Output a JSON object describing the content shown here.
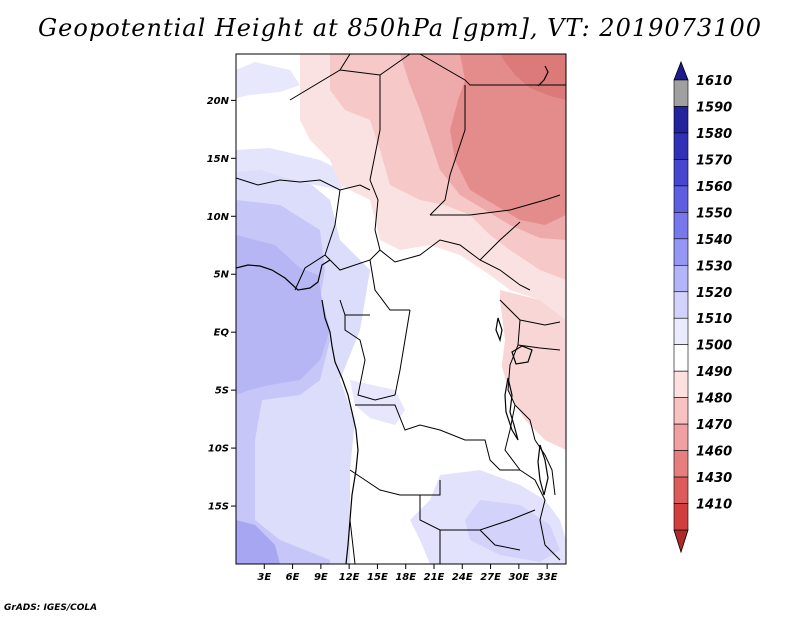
{
  "title": "Geopotential Height at 850hPa [gpm], VT: 2019073100",
  "footer": "GrADS: IGES/COLA",
  "map": {
    "region": "Central Africa",
    "lon_range": [
      0,
      35
    ],
    "lat_range": [
      -20,
      24
    ],
    "lat_ticks": [
      {
        "label": "20N",
        "value": 20
      },
      {
        "label": "15N",
        "value": 15
      },
      {
        "label": "10N",
        "value": 10
      },
      {
        "label": "5N",
        "value": 5
      },
      {
        "label": "EQ",
        "value": 0
      },
      {
        "label": "5S",
        "value": -5
      },
      {
        "label": "10S",
        "value": -10
      },
      {
        "label": "15S",
        "value": -15
      }
    ],
    "lon_ticks": [
      {
        "label": "3E",
        "value": 3
      },
      {
        "label": "6E",
        "value": 6
      },
      {
        "label": "9E",
        "value": 9
      },
      {
        "label": "12E",
        "value": 12
      },
      {
        "label": "15E",
        "value": 15
      },
      {
        "label": "18E",
        "value": 18
      },
      {
        "label": "21E",
        "value": 21
      },
      {
        "label": "24E",
        "value": 24
      },
      {
        "label": "27E",
        "value": 27
      },
      {
        "label": "30E",
        "value": 30
      },
      {
        "label": "33E",
        "value": 33
      }
    ]
  },
  "colorbar": {
    "levels": [
      {
        "label": "1610",
        "color": "#a0a0a0"
      },
      {
        "label": "1590",
        "color": "#23239e"
      },
      {
        "label": "1580",
        "color": "#3131b8"
      },
      {
        "label": "1570",
        "color": "#4646d0"
      },
      {
        "label": "1560",
        "color": "#5e5ee0"
      },
      {
        "label": "1550",
        "color": "#7878ec"
      },
      {
        "label": "1540",
        "color": "#9696f4"
      },
      {
        "label": "1530",
        "color": "#b4b4f8"
      },
      {
        "label": "1520",
        "color": "#d2d2fc"
      },
      {
        "label": "1510",
        "color": "#ebebfe"
      },
      {
        "label": "1500",
        "color": "#ffffff"
      },
      {
        "label": "1490",
        "color": "#fde1e1"
      },
      {
        "label": "1480",
        "color": "#f8c2c2"
      },
      {
        "label": "1470",
        "color": "#f0a0a0"
      },
      {
        "label": "1460",
        "color": "#e67e7e"
      },
      {
        "label": "1430",
        "color": "#dc5c5c"
      },
      {
        "label": "1410",
        "color": "#d03e3e"
      }
    ],
    "top_cap_color": "#1c1c8e",
    "bottom_cap_color": "#b02a2a"
  }
}
